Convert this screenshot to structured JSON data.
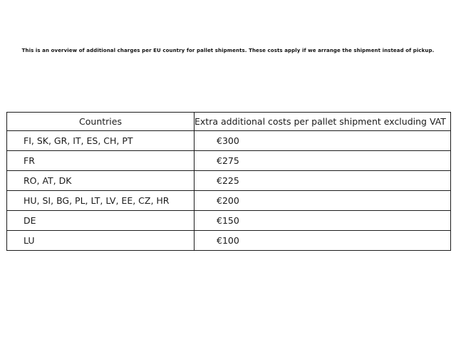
{
  "page": {
    "intro": "This is an overview of additional charges per EU country for pallet shipments. These costs apply if we arrange the shipment instead of pickup."
  },
  "table": {
    "headers": {
      "countries": "Countries",
      "cost": "Extra additional costs per pallet shipment excluding VAT"
    },
    "rows": [
      {
        "countries": "FI, SK, GR, IT, ES, CH, PT",
        "cost": "€300"
      },
      {
        "countries": "FR",
        "cost": "€275"
      },
      {
        "countries": "RO, AT, DK",
        "cost": "€225"
      },
      {
        "countries": "HU, SI, BG, PL, LT, LV, EE, CZ, HR",
        "cost": "€200"
      },
      {
        "countries": "DE",
        "cost": "€150"
      },
      {
        "countries": "LU",
        "cost": "€100"
      }
    ]
  },
  "colors": {
    "background": "#ffffff",
    "border": "#1c1c1c",
    "text": "#1a1a1a"
  }
}
